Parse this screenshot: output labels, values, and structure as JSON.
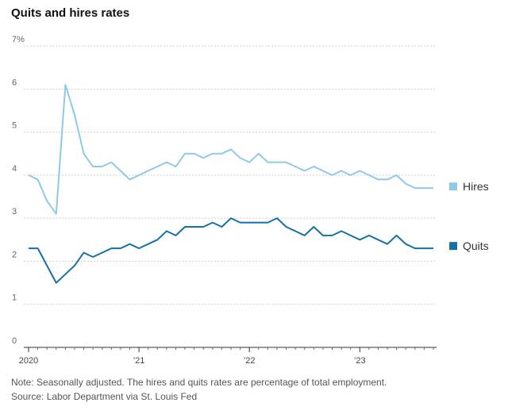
{
  "chart_data": {
    "type": "line",
    "title": "Quits and hires rates",
    "xlabel": "",
    "ylabel": "",
    "ylim": [
      0,
      7
    ],
    "yticks": [
      "0",
      "1",
      "2",
      "3",
      "4",
      "5",
      "6",
      "7%"
    ],
    "xtick_labels": [
      {
        "label": "2020",
        "month_index": 0
      },
      {
        "label": "’21",
        "month_index": 12
      },
      {
        "label": "’22",
        "month_index": 24
      },
      {
        "label": "’23",
        "month_index": 36
      }
    ],
    "x_months": 45,
    "series": [
      {
        "name": "Hires",
        "color": "#8ec9ea",
        "values": [
          4.0,
          3.9,
          3.4,
          3.1,
          6.1,
          5.4,
          4.5,
          4.2,
          4.2,
          4.3,
          4.1,
          3.9,
          4.0,
          4.1,
          4.2,
          4.3,
          4.2,
          4.5,
          4.5,
          4.4,
          4.5,
          4.5,
          4.6,
          4.4,
          4.3,
          4.5,
          4.3,
          4.3,
          4.3,
          4.2,
          4.1,
          4.2,
          4.1,
          4.0,
          4.1,
          4.0,
          4.1,
          4.0,
          3.9,
          3.9,
          4.0,
          3.8,
          3.7,
          3.7,
          3.7
        ]
      },
      {
        "name": "Quits",
        "color": "#1372a3",
        "values": [
          2.3,
          2.3,
          1.9,
          1.5,
          1.7,
          1.9,
          2.2,
          2.1,
          2.2,
          2.3,
          2.3,
          2.4,
          2.3,
          2.4,
          2.5,
          2.7,
          2.6,
          2.8,
          2.8,
          2.8,
          2.9,
          2.8,
          3.0,
          2.9,
          2.9,
          2.9,
          2.9,
          3.0,
          2.8,
          2.7,
          2.6,
          2.8,
          2.6,
          2.6,
          2.7,
          2.6,
          2.5,
          2.6,
          2.5,
          2.4,
          2.6,
          2.4,
          2.3,
          2.3,
          2.3
        ]
      }
    ],
    "legend": [
      "Hires",
      "Quits"
    ],
    "grid": true
  },
  "footer": {
    "note": "Note: Seasonally adjusted. The hires and quits rates are percentage of total employment.",
    "source": "Source: Labor Department via St. Louis Fed"
  }
}
